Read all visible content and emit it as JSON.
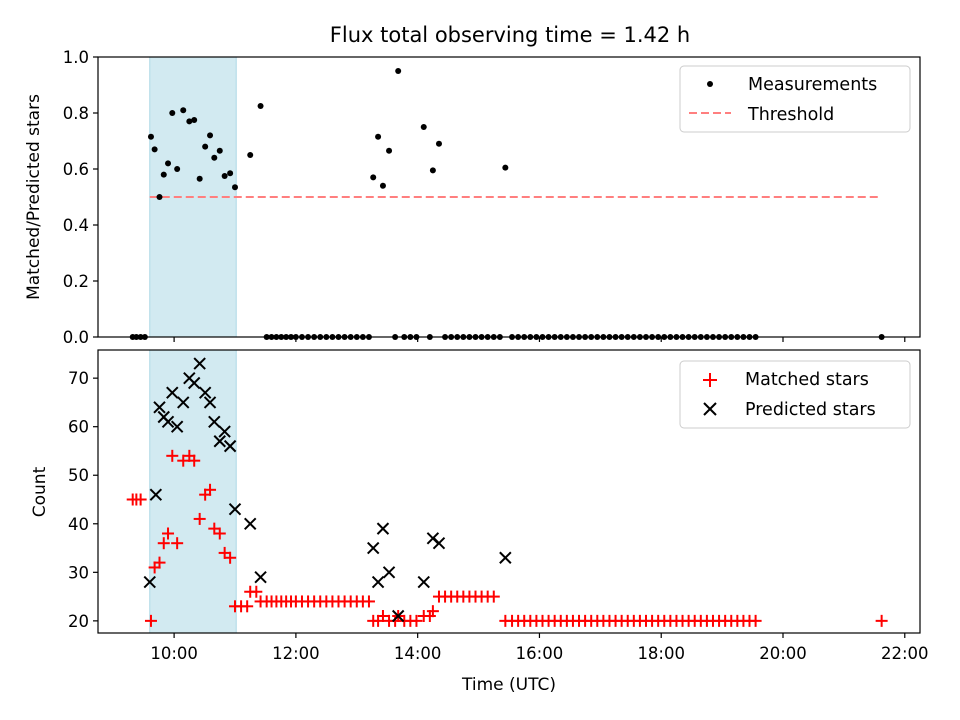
{
  "title": "Flux total observing time = 1.42 h",
  "colors": {
    "measurement": "#000000",
    "threshold": "#ff7f7f",
    "matched": "#ff0000",
    "predicted": "#000000",
    "shade": "#add8e6"
  },
  "chart_data": [
    {
      "type": "scatter",
      "title": "Flux total observing time = 1.42 h",
      "xlabel": "",
      "ylabel": "Matched/Predicted stars",
      "xlim": [
        8.75,
        22.25
      ],
      "ylim": [
        0,
        1.0
      ],
      "yticks": [
        0.0,
        0.2,
        0.4,
        0.6,
        0.8,
        1.0
      ],
      "ytick_labels": [
        "0.0",
        "0.2",
        "0.4",
        "0.6",
        "0.8",
        "1.0"
      ],
      "xticks": [
        10,
        12,
        14,
        16,
        18,
        20,
        22
      ],
      "shaded_span": [
        9.6,
        11.02
      ],
      "legend": {
        "position": "upper right",
        "entries": [
          "Measurements",
          "Threshold"
        ]
      },
      "threshold": {
        "name": "Threshold",
        "y": 0.5,
        "x_start": 9.6,
        "x_end": 21.6
      },
      "series": [
        {
          "name": "Measurements",
          "x": [
            9.32,
            9.38,
            9.45,
            9.52,
            9.62,
            9.68,
            9.76,
            9.83,
            9.9,
            9.97,
            10.05,
            10.15,
            10.25,
            10.33,
            10.42,
            10.51,
            10.59,
            10.66,
            10.75,
            10.83,
            10.92,
            11.0,
            11.25,
            11.42,
            11.52,
            11.6,
            11.68,
            11.76,
            11.84,
            11.92,
            12.0,
            12.1,
            12.2,
            12.3,
            12.4,
            12.5,
            12.6,
            12.7,
            12.8,
            12.9,
            13.0,
            13.1,
            13.2,
            13.27,
            13.35,
            13.43,
            13.53,
            13.63,
            13.68,
            13.78,
            13.88,
            13.98,
            14.1,
            14.2,
            14.25,
            14.35,
            14.45,
            14.55,
            14.65,
            14.75,
            14.85,
            14.95,
            15.05,
            15.15,
            15.25,
            15.35,
            15.44,
            15.55,
            15.65,
            15.75,
            15.85,
            15.95,
            16.05,
            16.15,
            16.25,
            16.35,
            16.45,
            16.55,
            16.65,
            16.75,
            16.85,
            16.95,
            17.05,
            17.15,
            17.25,
            17.35,
            17.45,
            17.55,
            17.65,
            17.75,
            17.85,
            17.95,
            18.05,
            18.15,
            18.25,
            18.35,
            18.45,
            18.55,
            18.65,
            18.75,
            18.85,
            18.95,
            19.05,
            19.15,
            19.25,
            19.35,
            19.45,
            19.55,
            21.62
          ],
          "y": [
            0.0,
            0.0,
            0.0,
            0.0,
            0.715,
            0.67,
            0.5,
            0.58,
            0.62,
            0.8,
            0.6,
            0.81,
            0.77,
            0.775,
            0.565,
            0.68,
            0.72,
            0.64,
            0.665,
            0.575,
            0.585,
            0.535,
            0.65,
            0.825,
            0.0,
            0.0,
            0.0,
            0.0,
            0.0,
            0.0,
            0.0,
            0.0,
            0.0,
            0.0,
            0.0,
            0.0,
            0.0,
            0.0,
            0.0,
            0.0,
            0.0,
            0.0,
            0.0,
            0.57,
            0.715,
            0.54,
            0.665,
            0.0,
            0.95,
            0.0,
            0.0,
            0.0,
            0.75,
            0.0,
            0.595,
            0.69,
            0.0,
            0.0,
            0.0,
            0.0,
            0.0,
            0.0,
            0.0,
            0.0,
            0.0,
            0.0,
            0.605,
            0.0,
            0.0,
            0.0,
            0.0,
            0.0,
            0.0,
            0.0,
            0.0,
            0.0,
            0.0,
            0.0,
            0.0,
            0.0,
            0.0,
            0.0,
            0.0,
            0.0,
            0.0,
            0.0,
            0.0,
            0.0,
            0.0,
            0.0,
            0.0,
            0.0,
            0.0,
            0.0,
            0.0,
            0.0,
            0.0,
            0.0,
            0.0,
            0.0,
            0.0,
            0.0,
            0.0,
            0.0,
            0.0,
            0.0,
            0.0,
            0.0,
            0.0
          ]
        }
      ]
    },
    {
      "type": "scatter",
      "xlabel": "Time (UTC)",
      "ylabel": "Count",
      "xlim": [
        8.75,
        22.25
      ],
      "ylim": [
        17.5,
        75.8
      ],
      "yticks": [
        20,
        30,
        40,
        50,
        60,
        70
      ],
      "ytick_labels": [
        "20",
        "30",
        "40",
        "50",
        "60",
        "70"
      ],
      "xticks": [
        10,
        12,
        14,
        16,
        18,
        20,
        22
      ],
      "xtick_labels": [
        "10:00",
        "12:00",
        "14:00",
        "16:00",
        "18:00",
        "20:00",
        "22:00"
      ],
      "shaded_span": [
        9.6,
        11.02
      ],
      "legend": {
        "position": "upper right",
        "entries": [
          "Matched stars",
          "Predicted stars"
        ]
      },
      "series": [
        {
          "name": "Matched stars",
          "marker": "+",
          "x": [
            9.32,
            9.38,
            9.45,
            9.62,
            9.68,
            9.76,
            9.83,
            9.9,
            9.97,
            10.05,
            10.15,
            10.25,
            10.33,
            10.42,
            10.51,
            10.59,
            10.66,
            10.75,
            10.83,
            10.92,
            11.0,
            11.1,
            11.2,
            11.25,
            11.35,
            11.42,
            11.52,
            11.6,
            11.68,
            11.76,
            11.84,
            11.92,
            12.0,
            12.1,
            12.2,
            12.3,
            12.4,
            12.5,
            12.6,
            12.7,
            12.8,
            12.9,
            13.0,
            13.1,
            13.2,
            13.27,
            13.35,
            13.43,
            13.53,
            13.63,
            13.68,
            13.78,
            13.88,
            13.98,
            14.1,
            14.2,
            14.25,
            14.35,
            14.45,
            14.55,
            14.65,
            14.75,
            14.85,
            14.95,
            15.05,
            15.15,
            15.25,
            15.44,
            15.55,
            15.65,
            15.75,
            15.85,
            15.95,
            16.05,
            16.15,
            16.25,
            16.35,
            16.45,
            16.55,
            16.65,
            16.75,
            16.85,
            16.95,
            17.05,
            17.15,
            17.25,
            17.35,
            17.45,
            17.55,
            17.65,
            17.75,
            17.85,
            17.95,
            18.05,
            18.15,
            18.25,
            18.35,
            18.45,
            18.55,
            18.65,
            18.75,
            18.85,
            18.95,
            19.05,
            19.15,
            19.25,
            19.35,
            19.45,
            19.55,
            21.62
          ],
          "y": [
            45,
            45,
            45,
            20,
            31,
            32,
            36,
            38,
            54,
            36,
            53,
            54,
            53,
            41,
            46,
            47,
            39,
            38,
            34,
            33,
            23,
            23,
            23,
            26,
            26,
            24,
            24,
            24,
            24,
            24,
            24,
            24,
            24,
            24,
            24,
            24,
            24,
            24,
            24,
            24,
            24,
            24,
            24,
            24,
            24,
            20,
            20,
            21,
            20,
            20,
            21,
            20,
            20,
            20,
            21,
            21,
            22,
            25,
            25,
            25,
            25,
            25,
            25,
            25,
            25,
            25,
            25,
            20,
            20,
            20,
            20,
            20,
            20,
            20,
            20,
            20,
            20,
            20,
            20,
            20,
            20,
            20,
            20,
            20,
            20,
            20,
            20,
            20,
            20,
            20,
            20,
            20,
            20,
            20,
            20,
            20,
            20,
            20,
            20,
            20,
            20,
            20,
            20,
            20,
            20,
            20,
            20,
            20,
            20,
            20
          ]
        },
        {
          "name": "Predicted stars",
          "marker": "x",
          "x": [
            9.6,
            9.7,
            9.76,
            9.83,
            9.9,
            9.97,
            10.05,
            10.15,
            10.25,
            10.33,
            10.42,
            10.51,
            10.59,
            10.66,
            10.75,
            10.83,
            10.92,
            11.0,
            11.25,
            11.42,
            13.27,
            13.35,
            13.43,
            13.53,
            13.68,
            14.1,
            14.25,
            14.35,
            15.44
          ],
          "y": [
            28,
            46,
            64,
            62,
            61,
            67,
            60,
            65,
            70,
            69,
            73,
            67,
            65,
            61,
            57,
            59,
            56,
            43,
            40,
            29,
            35,
            28,
            39,
            30,
            21,
            28,
            37,
            36,
            33
          ]
        }
      ]
    }
  ]
}
